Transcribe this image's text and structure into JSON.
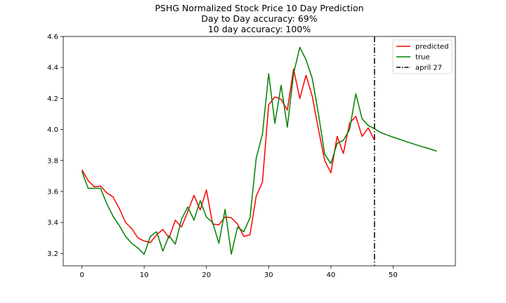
{
  "chart_data": {
    "type": "line",
    "title_lines": [
      "PSHG Normalized Stock Price 10 Day Prediction",
      "Day to Day accuracy: 69%",
      "10 day accuracy: 100%"
    ],
    "xlabel": "",
    "ylabel": "",
    "xlim": [
      -3,
      60
    ],
    "ylim": [
      3.12,
      4.6
    ],
    "xticks": [
      0,
      10,
      20,
      30,
      40,
      50
    ],
    "yticks": [
      3.2,
      3.4,
      3.6,
      3.8,
      4.0,
      4.2,
      4.4,
      4.6
    ],
    "ytick_labels": [
      "3.2",
      "3.4",
      "3.6",
      "3.8",
      "4.0",
      "4.2",
      "4.4",
      "4.6"
    ],
    "grid": false,
    "legend_position": "top-right",
    "series": [
      {
        "name": "predicted",
        "color": "#ff0000",
        "x": [
          0,
          1,
          2,
          3,
          4,
          5,
          6,
          7,
          8,
          9,
          10,
          11,
          12,
          13,
          14,
          15,
          16,
          17,
          18,
          19,
          20,
          21,
          22,
          23,
          24,
          25,
          26,
          27,
          28,
          29,
          30,
          31,
          32,
          33,
          34,
          35,
          36,
          37,
          38,
          39,
          40,
          41,
          42,
          43,
          44,
          45,
          46,
          47
        ],
        "y": [
          3.74,
          3.67,
          3.63,
          3.635,
          3.59,
          3.565,
          3.49,
          3.4,
          3.36,
          3.3,
          3.28,
          3.27,
          3.32,
          3.355,
          3.3,
          3.415,
          3.37,
          3.47,
          3.575,
          3.48,
          3.61,
          3.39,
          3.385,
          3.435,
          3.43,
          3.39,
          3.31,
          3.32,
          3.57,
          3.66,
          4.16,
          4.21,
          4.195,
          4.125,
          4.39,
          4.2,
          4.35,
          4.215,
          4.0,
          3.8,
          3.72,
          3.955,
          3.845,
          4.04,
          4.085,
          3.955,
          4.01,
          3.93
        ]
      },
      {
        "name": "true",
        "color": "#008000",
        "x": [
          0,
          1,
          2,
          3,
          4,
          5,
          6,
          7,
          8,
          9,
          10,
          11,
          12,
          13,
          14,
          15,
          16,
          17,
          18,
          19,
          20,
          21,
          22,
          23,
          24,
          25,
          26,
          27,
          28,
          29,
          30,
          31,
          32,
          33,
          34,
          35,
          36,
          37,
          38,
          39,
          40,
          41,
          42,
          43,
          44,
          45,
          46,
          47,
          48,
          49,
          50,
          51,
          52,
          53,
          54,
          55,
          56,
          57
        ],
        "y": [
          3.73,
          3.62,
          3.62,
          3.62,
          3.52,
          3.44,
          3.38,
          3.31,
          3.265,
          3.235,
          3.195,
          3.31,
          3.34,
          3.215,
          3.315,
          3.26,
          3.42,
          3.5,
          3.415,
          3.54,
          3.435,
          3.4,
          3.265,
          3.485,
          3.195,
          3.37,
          3.34,
          3.43,
          3.815,
          3.97,
          4.36,
          4.04,
          4.285,
          4.015,
          4.36,
          4.53,
          4.45,
          4.33,
          4.1,
          3.84,
          3.78,
          3.91,
          3.93,
          4.0,
          4.23,
          4.07,
          4.025,
          4.005,
          3.98,
          3.965,
          3.95,
          3.937,
          3.923,
          3.91,
          3.897,
          3.885,
          3.873,
          3.86
        ]
      },
      {
        "name": "april 27",
        "color": "#000000",
        "style": "dash-dot",
        "orientation": "vertical",
        "x_value": 47
      }
    ]
  }
}
